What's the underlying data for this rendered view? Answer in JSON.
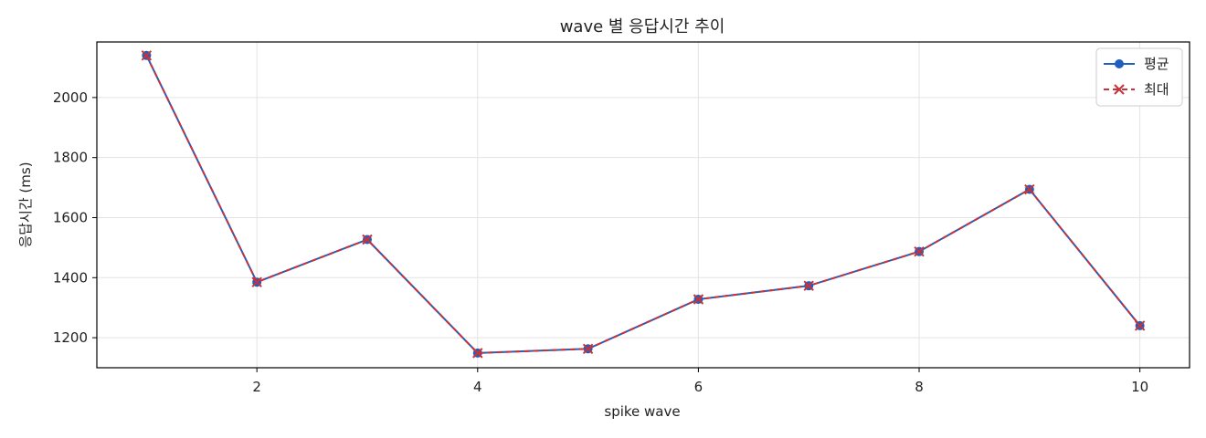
{
  "chart_data": {
    "type": "line",
    "title": "wave 별 응답시간 추이",
    "xlabel": "spike wave",
    "ylabel": "응답시간 (ms)",
    "x": [
      1,
      2,
      3,
      4,
      5,
      6,
      7,
      8,
      9,
      10
    ],
    "xlim": [
      0.55,
      10.45
    ],
    "ylim": [
      1100,
      2185
    ],
    "xticks": [
      2,
      4,
      6,
      8,
      10
    ],
    "yticks": [
      1200,
      1400,
      1600,
      1800,
      2000
    ],
    "grid": true,
    "legend_position": "top-right",
    "series": [
      {
        "name": "평균",
        "values": [
          2140,
          1385,
          1527,
          1149,
          1163,
          1328,
          1373,
          1487,
          1694,
          1240
        ],
        "color": "#1f5fbf",
        "linestyle": "solid",
        "marker": "circle"
      },
      {
        "name": "최대",
        "values": [
          2140,
          1385,
          1527,
          1149,
          1163,
          1328,
          1373,
          1487,
          1694,
          1240
        ],
        "color": "#c8323a",
        "linestyle": "dashed",
        "marker": "x"
      }
    ]
  }
}
